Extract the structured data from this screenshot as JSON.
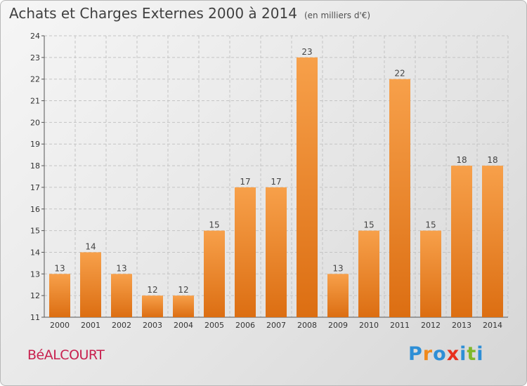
{
  "header": {
    "title": "Achats et Charges Externes 2000 à 2014",
    "subtitle": "(en milliers d'€)"
  },
  "footer": {
    "commune": "BéALCOURT",
    "logo": {
      "letters": [
        "P",
        "r",
        "o",
        "x",
        "i",
        "t",
        "i"
      ],
      "colors": [
        "#2e8fd6",
        "#f08a1c",
        "#2e8fd6",
        "#e8301e",
        "#2e8fd6",
        "#7fb82a",
        "#2e8fd6"
      ]
    }
  },
  "chart_data": {
    "type": "bar",
    "title": "Achats et Charges Externes 2000 à 2014",
    "subtitle": "(en milliers d'€)",
    "categories": [
      "2000",
      "2001",
      "2002",
      "2003",
      "2004",
      "2005",
      "2006",
      "2007",
      "2008",
      "2009",
      "2010",
      "2011",
      "2012",
      "2013",
      "2014"
    ],
    "values": [
      13,
      14,
      13,
      12,
      12,
      15,
      17,
      17,
      23,
      13,
      15,
      22,
      15,
      18,
      18
    ],
    "yticks": [
      11,
      12,
      13,
      14,
      15,
      16,
      17,
      18,
      19,
      20,
      21,
      22,
      23,
      24
    ],
    "ylim": [
      11,
      24
    ],
    "grid": true,
    "bar_color": "#f08a2a"
  }
}
